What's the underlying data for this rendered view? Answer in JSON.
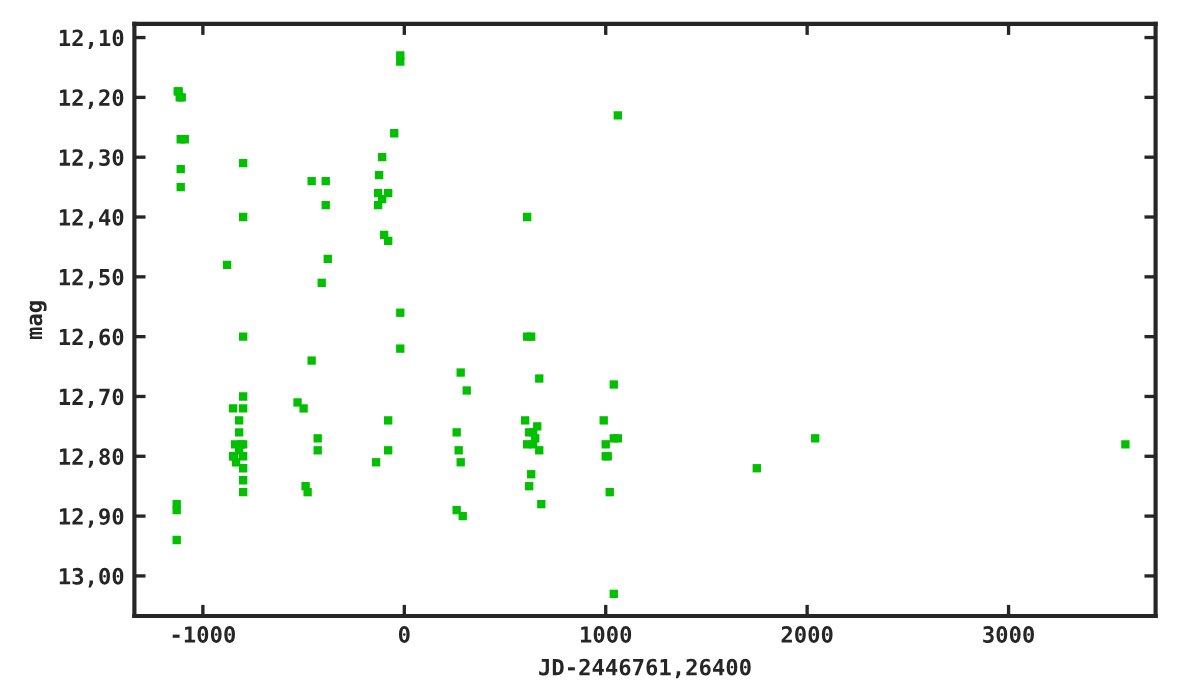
{
  "chart_data": {
    "type": "scatter",
    "xlabel": "JD-2446761,26400",
    "ylabel": "mag",
    "x": [
      -1120,
      -1115,
      -1105,
      -1125,
      -1110,
      -1090,
      -1110,
      -1110,
      -1130,
      -1130,
      -1130,
      -880,
      -850,
      -840,
      -845,
      -835,
      -850,
      -820,
      -820,
      -820,
      -800,
      -800,
      -800,
      -800,
      -800,
      -800,
      -800,
      -800,
      -800,
      -800,
      -810,
      -530,
      -500,
      -490,
      -480,
      -460,
      -460,
      -430,
      -430,
      -410,
      -390,
      -390,
      -380,
      -140,
      -130,
      -130,
      -125,
      -110,
      -110,
      -100,
      -80,
      -80,
      -80,
      -80,
      -50,
      -20,
      -20,
      -20,
      -20,
      260,
      270,
      280,
      260,
      280,
      290,
      310,
      610,
      610,
      600,
      620,
      640,
      610,
      620,
      630,
      630,
      640,
      650,
      660,
      670,
      670,
      680,
      990,
      1000,
      1000,
      1010,
      1020,
      1040,
      1040,
      1040,
      1060,
      1060,
      1750,
      2040,
      3580
    ],
    "values": [
      12.19,
      12.2,
      12.2,
      12.19,
      12.27,
      12.27,
      12.32,
      12.35,
      12.88,
      12.89,
      12.94,
      12.48,
      12.72,
      12.78,
      12.8,
      12.81,
      12.8,
      12.79,
      12.76,
      12.74,
      12.31,
      12.4,
      12.6,
      12.7,
      12.72,
      12.78,
      12.8,
      12.82,
      12.84,
      12.86,
      12.78,
      12.71,
      12.72,
      12.85,
      12.86,
      12.34,
      12.64,
      12.77,
      12.79,
      12.51,
      12.34,
      12.38,
      12.47,
      12.81,
      12.38,
      12.36,
      12.33,
      12.3,
      12.37,
      12.43,
      12.36,
      12.44,
      12.74,
      12.79,
      12.26,
      12.13,
      12.14,
      12.56,
      12.62,
      12.76,
      12.79,
      12.81,
      12.89,
      12.66,
      12.9,
      12.69,
      12.4,
      12.6,
      12.74,
      12.76,
      12.76,
      12.78,
      12.85,
      12.6,
      12.83,
      12.78,
      12.77,
      12.75,
      12.79,
      12.67,
      12.88,
      12.74,
      12.78,
      12.8,
      12.8,
      12.86,
      12.68,
      12.77,
      13.03,
      12.23,
      12.77,
      12.82,
      12.77,
      12.78
    ],
    "color": "#00c000",
    "marker": "square",
    "xlim": [
      -1340,
      3730
    ],
    "ylim": [
      13.067,
      12.077
    ],
    "xticks": [
      -1000,
      0,
      1000,
      2000,
      3000
    ],
    "yticks": [
      {
        "value": 12.1,
        "label": "12,10"
      },
      {
        "value": 12.2,
        "label": "12,20"
      },
      {
        "value": 12.3,
        "label": "12,30"
      },
      {
        "value": 12.4,
        "label": "12,40"
      },
      {
        "value": 12.5,
        "label": "12,50"
      },
      {
        "value": 12.6,
        "label": "12,60"
      },
      {
        "value": 12.7,
        "label": "12,70"
      },
      {
        "value": 12.8,
        "label": "12,80"
      },
      {
        "value": 12.9,
        "label": "12,90"
      },
      {
        "value": 13.0,
        "label": "13,00"
      }
    ],
    "grid": false
  }
}
